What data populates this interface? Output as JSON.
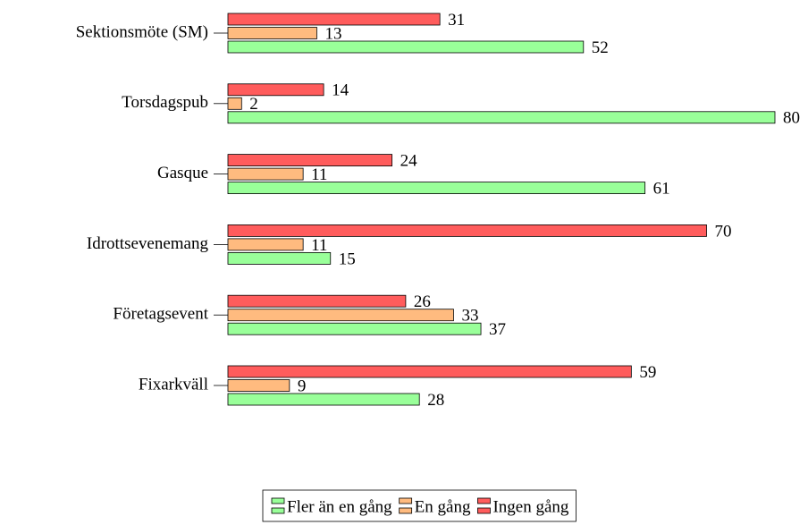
{
  "chart_data": {
    "type": "bar",
    "orientation": "horizontal",
    "categories": [
      "Sektionsmöte (SM)",
      "Torsdagspub",
      "Gasque",
      "Idrottsevenemang",
      "Företagsevent",
      "Fixarkväll"
    ],
    "series": [
      {
        "name": "Fler än en gång",
        "color": "#99ff99",
        "values": [
          52,
          80,
          61,
          15,
          37,
          28
        ]
      },
      {
        "name": "En gång",
        "color": "#ffbb7f",
        "values": [
          13,
          2,
          11,
          11,
          33,
          9
        ]
      },
      {
        "name": "Ingen gång",
        "color": "#ff5c5c",
        "values": [
          31,
          14,
          24,
          70,
          26,
          59
        ]
      }
    ],
    "xlim": [
      0,
      80
    ],
    "legend": "bottom"
  }
}
